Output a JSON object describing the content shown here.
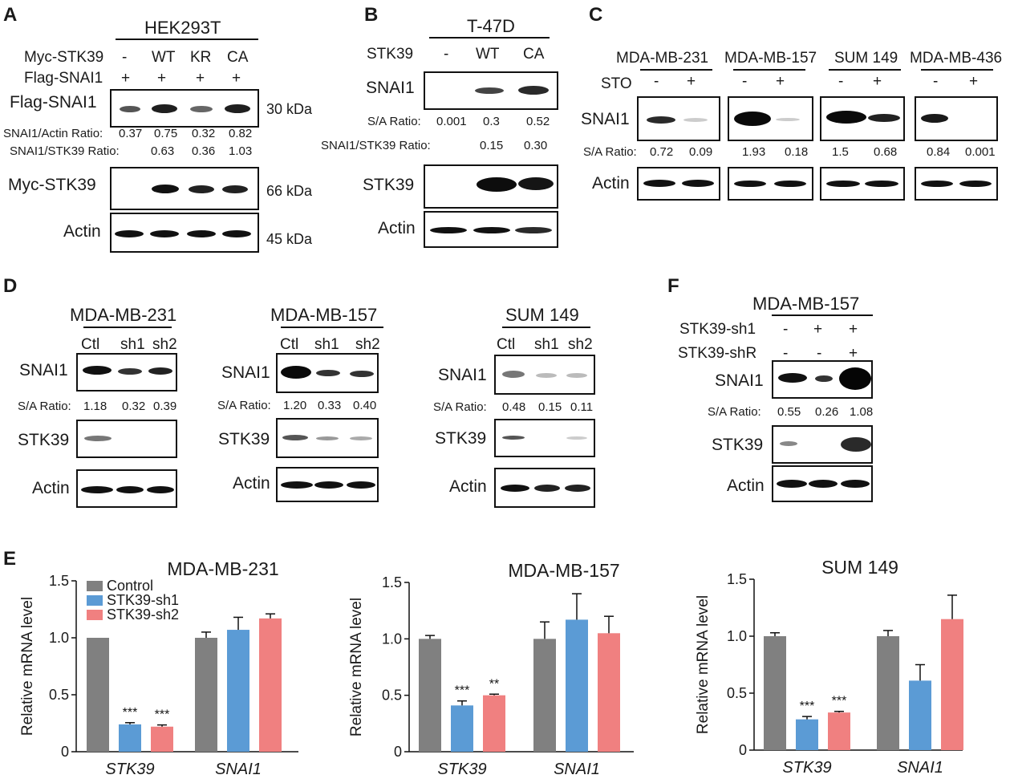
{
  "panelA": {
    "label": "A",
    "cell_line": "HEK293T",
    "row1_label": "Myc-STK39",
    "row1_values": [
      "-",
      "WT",
      "KR",
      "CA"
    ],
    "row2_label": "Flag-SNAI1",
    "row2_values": [
      "+",
      "+",
      "+",
      "+"
    ],
    "blot1": "Flag-SNAI1",
    "kda1": "30 kDa",
    "ratio1_label": "SNAI1/Actin Ratio:",
    "ratio1_values": [
      "0.37",
      "0.75",
      "0.32",
      "0.82"
    ],
    "ratio2_label": "SNAI1/STK39 Ratio:",
    "ratio2_values": [
      "0.63",
      "0.36",
      "1.03"
    ],
    "blot2": "Myc-STK39",
    "kda2": "66 kDa",
    "blot3": "Actin",
    "kda3": "45 kDa"
  },
  "panelB": {
    "label": "B",
    "cell_line": "T-47D",
    "row1_label": "STK39",
    "row1_values": [
      "-",
      "WT",
      "CA"
    ],
    "blot1": "SNAI1",
    "ratio1_label": "S/A Ratio:",
    "ratio1_values": [
      "0.001",
      "0.3",
      "0.52"
    ],
    "ratio2_label": "SNAI1/STK39 Ratio:",
    "ratio2_values": [
      "0.15",
      "0.30"
    ],
    "blot2": "STK39",
    "blot3": "Actin"
  },
  "panelC": {
    "label": "C",
    "lines": [
      "MDA-MB-231",
      "MDA-MB-157",
      "SUM 149",
      "MDA-MB-436"
    ],
    "sto_label": "STO",
    "sto_values": [
      "-",
      "+"
    ],
    "blot1": "SNAI1",
    "ratio_label": "S/A Ratio:",
    "ratios": [
      [
        "0.72",
        "0.09"
      ],
      [
        "1.93",
        "0.18"
      ],
      [
        "1.5",
        "0.68"
      ],
      [
        "0.84",
        "0.001"
      ]
    ],
    "blot2": "Actin"
  },
  "panelD": {
    "label": "D",
    "groups": [
      {
        "line": "MDA-MB-231",
        "lanes": [
          "Ctl",
          "sh1",
          "sh2"
        ],
        "ratio_label": "S/A Ratio:",
        "ratios": [
          "1.18",
          "0.32",
          "0.39"
        ]
      },
      {
        "line": "MDA-MB-157",
        "lanes": [
          "Ctl",
          "sh1",
          "sh2"
        ],
        "ratio_label": "S/A Ratio:",
        "ratios": [
          "1.20",
          "0.33",
          "0.40"
        ]
      },
      {
        "line": "SUM 149",
        "lanes": [
          "Ctl",
          "sh1",
          "sh2"
        ],
        "ratio_label": "S/A Ratio:",
        "ratios": [
          "0.48",
          "0.15",
          "0.11"
        ]
      }
    ],
    "blot1": "SNAI1",
    "blot2": "STK39",
    "blot3": "Actin"
  },
  "panelF": {
    "label": "F",
    "cell_line": "MDA-MB-157",
    "row1_label": "STK39-sh1",
    "row1_values": [
      "-",
      "+",
      "+"
    ],
    "row2_label": "STK39-shR",
    "row2_values": [
      "-",
      "-",
      "+"
    ],
    "blot1": "SNAI1",
    "ratio_label": "S/A Ratio:",
    "ratios": [
      "0.55",
      "0.26",
      "1.08"
    ],
    "blot2": "STK39",
    "blot3": "Actin"
  },
  "panelE": {
    "label": "E",
    "legend": [
      "Control",
      "STK39-sh1",
      "STK39-sh2"
    ]
  },
  "chart_data": [
    {
      "type": "bar",
      "title": "MDA-MB-231",
      "ylabel": "Relative mRNA level",
      "ylim": [
        0,
        1.5
      ],
      "yticks": [
        "0",
        "0.5",
        "1.0",
        "1.5"
      ],
      "categories": [
        "STK39",
        "SNAI1"
      ],
      "colors": [
        "#808080",
        "#5b9bd5",
        "#f08080"
      ],
      "series": [
        {
          "name": "Control",
          "values": [
            1.0,
            1.0
          ],
          "errors": [
            0,
            0.05
          ]
        },
        {
          "name": "STK39-sh1",
          "values": [
            0.24,
            1.07
          ],
          "errors": [
            0.015,
            0.11
          ]
        },
        {
          "name": "STK39-sh2",
          "values": [
            0.22,
            1.17
          ],
          "errors": [
            0.015,
            0.04
          ]
        }
      ],
      "annotations": [
        [
          "***",
          "***"
        ],
        [
          "",
          ""
        ]
      ]
    },
    {
      "type": "bar",
      "title": "MDA-MB-157",
      "ylabel": "Relative mRNA level",
      "ylim": [
        0,
        1.5
      ],
      "yticks": [
        "0",
        "0.5",
        "1.0",
        "1.5"
      ],
      "categories": [
        "STK39",
        "SNAI1"
      ],
      "colors": [
        "#808080",
        "#5b9bd5",
        "#f08080"
      ],
      "series": [
        {
          "name": "Control",
          "values": [
            1.0,
            1.0
          ],
          "errors": [
            0.03,
            0.15
          ]
        },
        {
          "name": "STK39-sh1",
          "values": [
            0.41,
            1.17
          ],
          "errors": [
            0.04,
            0.23
          ]
        },
        {
          "name": "STK39-sh2",
          "values": [
            0.5,
            1.05
          ],
          "errors": [
            0.01,
            0.15
          ]
        }
      ],
      "annotations": [
        [
          "***",
          "**"
        ],
        [
          "",
          ""
        ]
      ]
    },
    {
      "type": "bar",
      "title": "SUM 149",
      "ylabel": "Relative mRNA level",
      "ylim": [
        0,
        1.5
      ],
      "yticks": [
        "0",
        "0.5",
        "1.0",
        "1.5"
      ],
      "categories": [
        "STK39",
        "SNAI1"
      ],
      "colors": [
        "#808080",
        "#5b9bd5",
        "#f08080"
      ],
      "series": [
        {
          "name": "Control",
          "values": [
            1.0,
            1.0
          ],
          "errors": [
            0.03,
            0.05
          ]
        },
        {
          "name": "STK39-sh1",
          "values": [
            0.27,
            0.61
          ],
          "errors": [
            0.025,
            0.14
          ]
        },
        {
          "name": "STK39-sh2",
          "values": [
            0.33,
            1.15
          ],
          "errors": [
            0.01,
            0.21
          ]
        }
      ],
      "annotations": [
        [
          "***",
          "***"
        ],
        [
          "",
          ""
        ]
      ]
    }
  ]
}
